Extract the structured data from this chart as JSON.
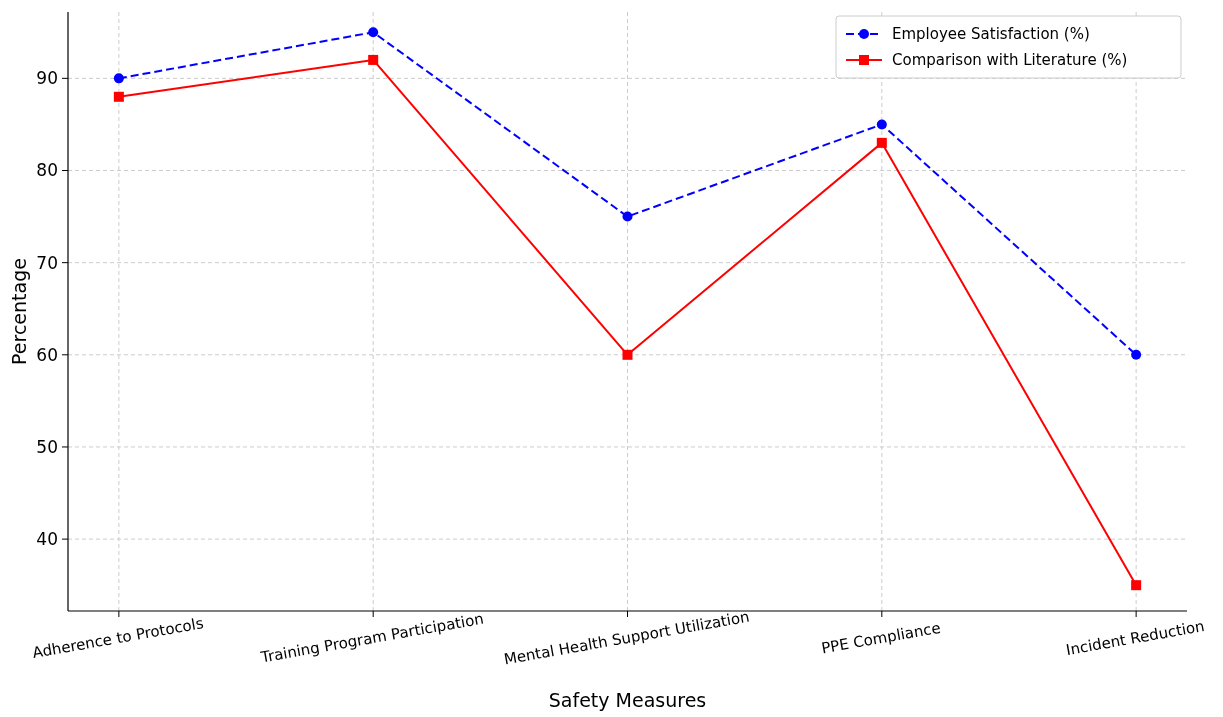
{
  "chart_data": {
    "type": "line",
    "xlabel": "Safety Measures",
    "ylabel": "Percentage",
    "categories": [
      "Adherence to Protocols",
      "Training Program Participation",
      "Mental Health Support Utilization",
      "PPE Compliance",
      "Incident Reduction"
    ],
    "series": [
      {
        "name": "Employee Satisfaction (%)",
        "color": "#0000ff",
        "values": [
          90,
          95,
          75,
          85,
          60
        ],
        "marker": "circle",
        "line_style": "dashed"
      },
      {
        "name": "Comparison with Literature (%)",
        "color": "#ff0000",
        "values": [
          88,
          92,
          60,
          83,
          35
        ],
        "marker": "square",
        "line_style": "solid"
      }
    ],
    "ylim": [
      32.2,
      97.2
    ],
    "yticks": [
      40,
      50,
      60,
      70,
      80,
      90
    ],
    "grid": true,
    "legend": "top right"
  }
}
